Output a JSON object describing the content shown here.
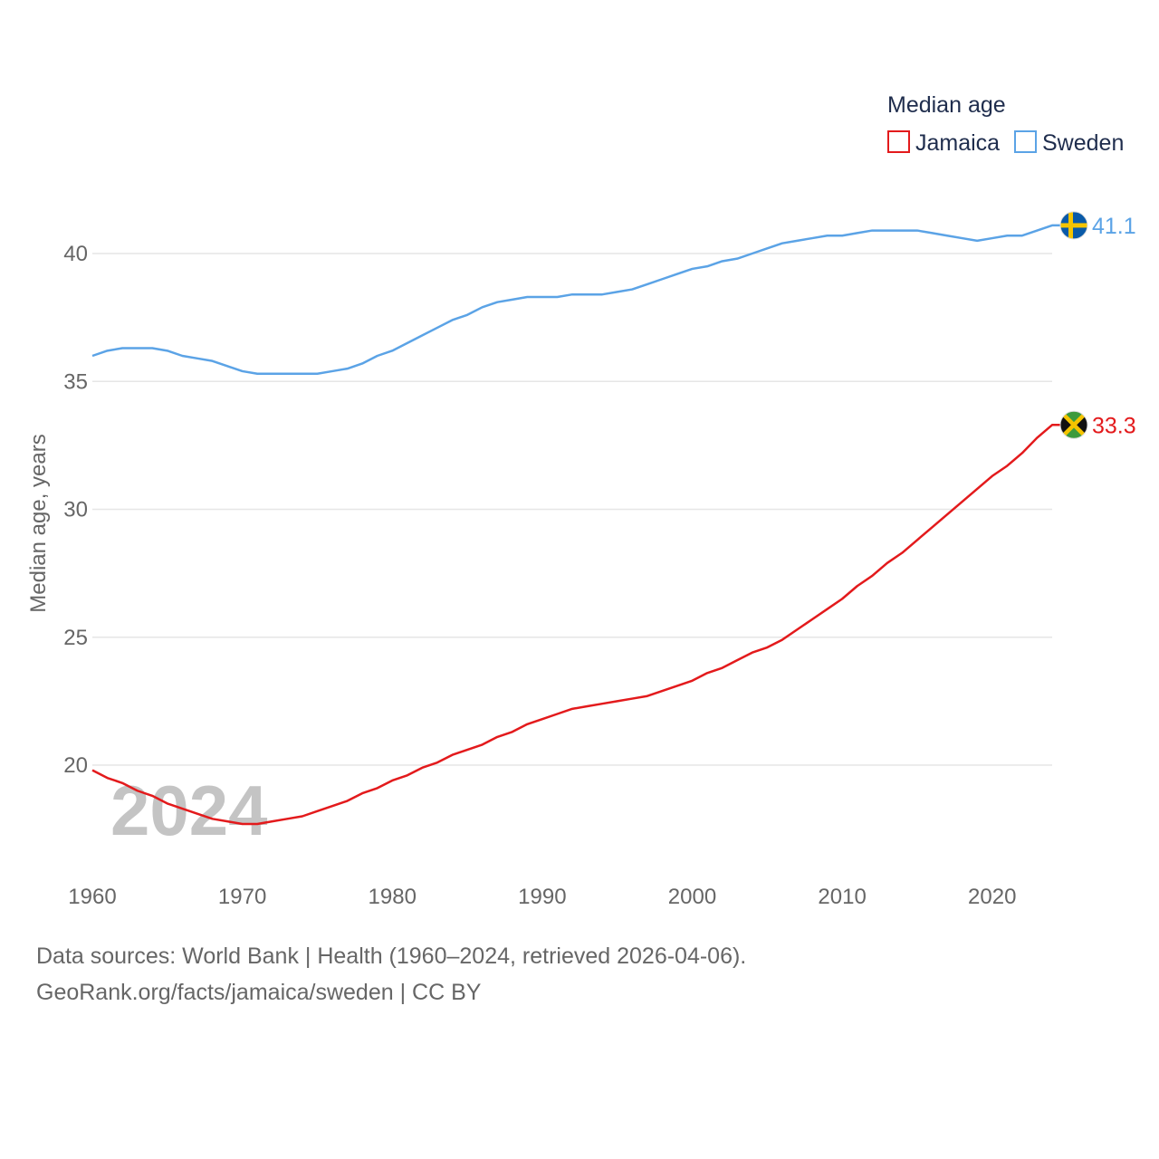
{
  "chart_data": {
    "type": "line",
    "title": "Median age",
    "xlabel": "",
    "ylabel": "Median age, years",
    "xlim": [
      1960,
      2024
    ],
    "ylim": [
      16,
      43
    ],
    "x_ticks": [
      1960,
      1970,
      1980,
      1990,
      2000,
      2010,
      2020
    ],
    "y_ticks": [
      20,
      25,
      30,
      35,
      40
    ],
    "grid": true,
    "legend_position": "top-right",
    "current_year": "2024",
    "x": [
      1960,
      1961,
      1962,
      1963,
      1964,
      1965,
      1966,
      1967,
      1968,
      1969,
      1970,
      1971,
      1972,
      1973,
      1974,
      1975,
      1976,
      1977,
      1978,
      1979,
      1980,
      1981,
      1982,
      1983,
      1984,
      1985,
      1986,
      1987,
      1988,
      1989,
      1990,
      1991,
      1992,
      1993,
      1994,
      1995,
      1996,
      1997,
      1998,
      1999,
      2000,
      2001,
      2002,
      2003,
      2004,
      2005,
      2006,
      2007,
      2008,
      2009,
      2010,
      2011,
      2012,
      2013,
      2014,
      2015,
      2016,
      2017,
      2018,
      2019,
      2020,
      2021,
      2022,
      2023,
      2024
    ],
    "series": [
      {
        "name": "Jamaica",
        "color": "#e31a1c",
        "end_label": "33.3",
        "flag": "jamaica-flag",
        "values": [
          19.8,
          19.5,
          19.3,
          19.0,
          18.8,
          18.5,
          18.3,
          18.1,
          17.9,
          17.8,
          17.7,
          17.7,
          17.8,
          17.9,
          18.0,
          18.2,
          18.4,
          18.6,
          18.9,
          19.1,
          19.4,
          19.6,
          19.9,
          20.1,
          20.4,
          20.6,
          20.8,
          21.1,
          21.3,
          21.6,
          21.8,
          22.0,
          22.2,
          22.3,
          22.4,
          22.5,
          22.6,
          22.7,
          22.9,
          23.1,
          23.3,
          23.6,
          23.8,
          24.1,
          24.4,
          24.6,
          24.9,
          25.3,
          25.7,
          26.1,
          26.5,
          27.0,
          27.4,
          27.9,
          28.3,
          28.8,
          29.3,
          29.8,
          30.3,
          30.8,
          31.3,
          31.7,
          32.2,
          32.8,
          33.3
        ]
      },
      {
        "name": "Sweden",
        "color": "#5ba3e6",
        "end_label": "41.1",
        "flag": "sweden-flag",
        "values": [
          36.0,
          36.2,
          36.3,
          36.3,
          36.3,
          36.2,
          36.0,
          35.9,
          35.8,
          35.6,
          35.4,
          35.3,
          35.3,
          35.3,
          35.3,
          35.3,
          35.4,
          35.5,
          35.7,
          36.0,
          36.2,
          36.5,
          36.8,
          37.1,
          37.4,
          37.6,
          37.9,
          38.1,
          38.2,
          38.3,
          38.3,
          38.3,
          38.4,
          38.4,
          38.4,
          38.5,
          38.6,
          38.8,
          39.0,
          39.2,
          39.4,
          39.5,
          39.7,
          39.8,
          40.0,
          40.2,
          40.4,
          40.5,
          40.6,
          40.7,
          40.7,
          40.8,
          40.9,
          40.9,
          40.9,
          40.9,
          40.8,
          40.7,
          40.6,
          40.5,
          40.6,
          40.7,
          40.7,
          40.9,
          41.1
        ]
      }
    ]
  },
  "footer": {
    "source": "Data sources: World Bank | Health (1960–2024, retrieved 2026-04-06).",
    "credit": "GeoRank.org/facts/jamaica/sweden | CC BY"
  }
}
